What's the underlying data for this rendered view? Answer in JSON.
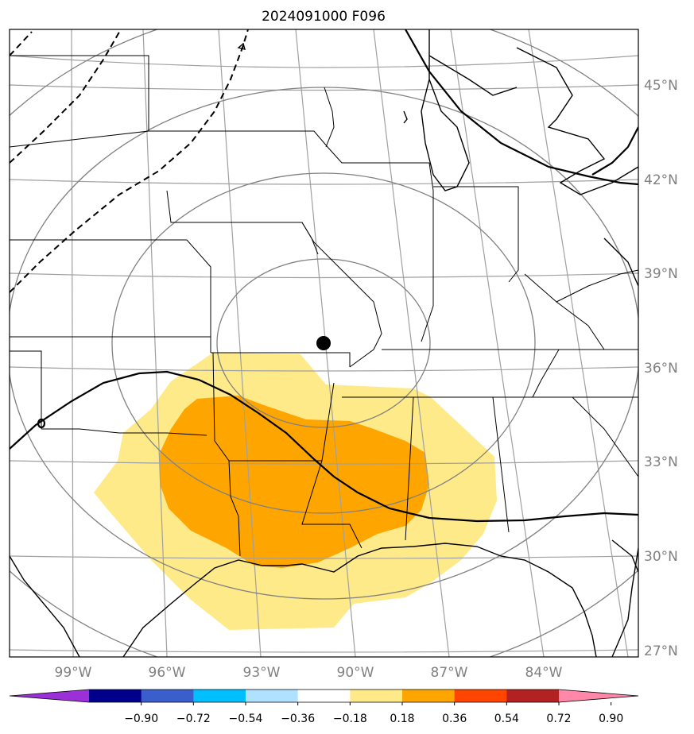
{
  "title": "2024091000 F096",
  "map": {
    "projection": "lambert-conformal",
    "center_marker": {
      "lon": -91.0,
      "lat": 37.6
    },
    "lat_labels": [
      "45°N",
      "42°N",
      "39°N",
      "36°N",
      "33°N",
      "30°N",
      "27°N"
    ],
    "lon_labels": [
      "99°W",
      "96°W",
      "93°W",
      "90°W",
      "87°W",
      "84°W"
    ],
    "gridline_color": "#a0a0a0",
    "range_ring_color": "#808080",
    "boundary_color": "#000000"
  },
  "fill_levels": {
    "contour_bands": [
      {
        "range": [
          0.18,
          0.36
        ],
        "color": "#ffea8a"
      },
      {
        "range": [
          0.36,
          0.54
        ],
        "color": "#ffa500"
      }
    ],
    "dashed_contours": 3,
    "solid_contours": 2
  },
  "colorbar": {
    "colors": [
      "#9b30d9",
      "#00008b",
      "#3a5fcd",
      "#00bfff",
      "#b0e2ff",
      "#ffffff",
      "#ffea8a",
      "#ffa500",
      "#ff4500",
      "#b22222",
      "#ff88aa"
    ],
    "ticks": [
      "−0.90",
      "−0.72",
      "−0.54",
      "−0.36",
      "−0.18",
      "0.18",
      "0.36",
      "0.54",
      "0.72",
      "0.90"
    ]
  }
}
